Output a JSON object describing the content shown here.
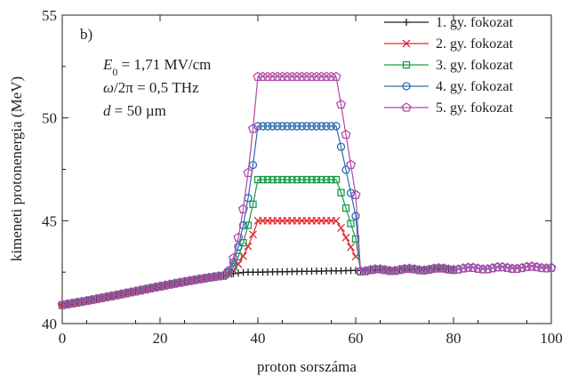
{
  "chart_data": {
    "type": "line",
    "panel_label": "b)",
    "xlabel": "proton sorszáma",
    "ylabel": "kimeneti protonenergia (MeV)",
    "xlim": [
      0,
      100
    ],
    "ylim": [
      40,
      55
    ],
    "xticks": [
      0,
      20,
      40,
      60,
      80,
      100
    ],
    "yticks": [
      40,
      45,
      50,
      55
    ],
    "params": [
      {
        "sym": "E",
        "sub": "0",
        "text": " = 1,71 MV/cm"
      },
      {
        "sym": "ω",
        "sub": "",
        "text": "/2π = 0,5 THz"
      },
      {
        "sym": "d",
        "sub": "",
        "text": " = 50 µm"
      }
    ],
    "legend_position": "top-right",
    "series": [
      {
        "name": "1. gy. fokozat",
        "color": "#231f20",
        "marker": "plus",
        "plateau": 42.5,
        "start": 38,
        "end": 77,
        "x_last": 80
      },
      {
        "name": "2. gy. fokozat",
        "color": "#e3262f",
        "marker": "cross",
        "plateau": 45.0,
        "start": 40,
        "end": 60,
        "x_last": 60
      },
      {
        "name": "3. gy. fokozat",
        "color": "#1a9a48",
        "marker": "square",
        "plateau": 47.0,
        "start": 40,
        "end": 60,
        "x_last": 80
      },
      {
        "name": "4. gy. fokozat",
        "color": "#2a6db5",
        "marker": "circle",
        "plateau": 49.6,
        "start": 40,
        "end": 60,
        "x_last": 100
      },
      {
        "name": "5. gy. fokozat",
        "color": "#b14aa6",
        "marker": "pentagon",
        "plateau": 52.0,
        "start": 40,
        "end": 60,
        "x_last": 100
      }
    ]
  }
}
